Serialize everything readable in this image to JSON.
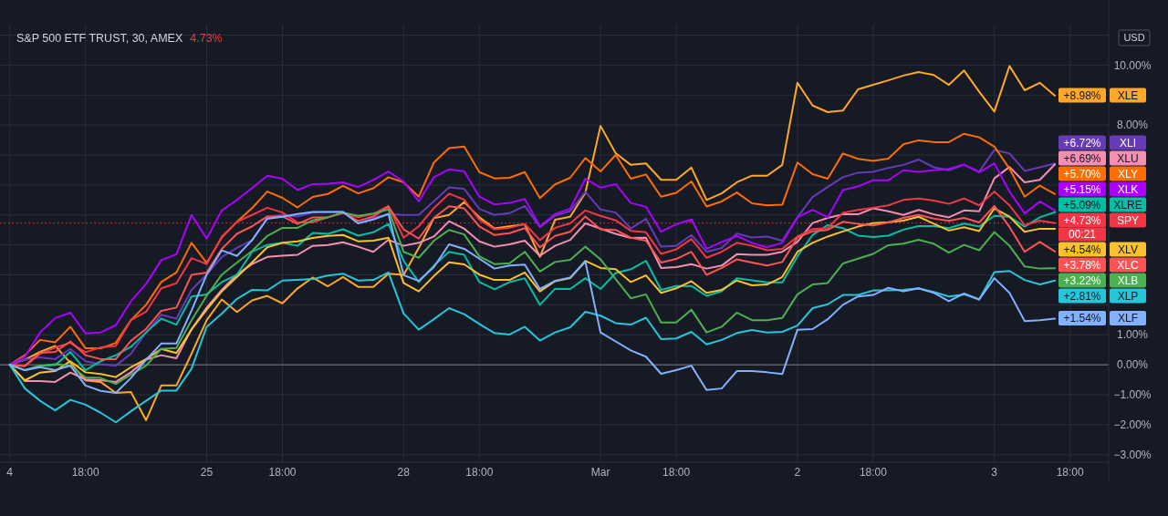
{
  "chart_data": {
    "type": "line",
    "title": "S&P 500 ETF TRUST, 30, AMEX",
    "subtitle": "4.73%",
    "ylabel": "USD",
    "grid": true,
    "legend": "right",
    "categories": [
      "4",
      null,
      null,
      null,
      null,
      "18:00",
      null,
      null,
      null,
      null,
      null,
      null,
      null,
      "25",
      null,
      null,
      null,
      null,
      "18:00",
      null,
      null,
      null,
      null,
      null,
      null,
      null,
      "28",
      null,
      null,
      null,
      null,
      "18:00",
      null,
      null,
      null,
      null,
      null,
      null,
      null,
      "Mar",
      null,
      null,
      null,
      null,
      "18:00",
      null,
      null,
      null,
      null,
      null,
      null,
      null,
      "2",
      null,
      null,
      null,
      null,
      "18:00",
      null,
      null,
      null,
      null,
      null,
      null,
      null,
      "3",
      null,
      null,
      null,
      null,
      "18:00"
    ],
    "ylim": [
      -3.25,
      11.35
    ],
    "yticks": [
      {
        "value": -3,
        "label": "−3.00%"
      },
      {
        "value": -2,
        "label": "−2.00%"
      },
      {
        "value": -1,
        "label": "−1.00%"
      },
      {
        "value": 0,
        "label": "0.00%"
      },
      {
        "value": 1,
        "label": "1.00%"
      },
      {
        "value": 2,
        "label": null
      },
      {
        "value": 3,
        "label": null
      },
      {
        "value": 4,
        "label": null
      },
      {
        "value": 5,
        "label": null
      },
      {
        "value": 6,
        "label": null
      },
      {
        "value": 7,
        "label": null
      },
      {
        "value": 8,
        "label": "8.00%"
      },
      {
        "value": 9,
        "label": null
      },
      {
        "value": 10,
        "label": "10.00%"
      },
      {
        "value": 11,
        "label": null
      }
    ],
    "ref_lines": [
      {
        "axis": "y",
        "value": 0,
        "color": "#787b86"
      },
      {
        "axis": "y",
        "value": 4.73,
        "color": "#f23645",
        "line_style": "dotted"
      }
    ],
    "annotations": [
      "00:21"
    ],
    "series": [
      {
        "name": "XLE",
        "color": "#ffa726",
        "values": [
          0,
          0.17,
          0.43,
          0.63,
          0.07,
          -0.52,
          -0.57,
          -0.94,
          -0.91,
          -1.85,
          -0.69,
          -0.69,
          0.37,
          1.49,
          2.18,
          1.76,
          2.15,
          2.3,
          2.05,
          2.55,
          2.91,
          2.62,
          2.93,
          2.6,
          2.6,
          3.04,
          3.0,
          3.9,
          4.89,
          5.0,
          5.43,
          4.92,
          4.55,
          4.62,
          4.69,
          3.6,
          4.84,
          4.94,
          5.74,
          7.97,
          7.06,
          6.67,
          6.72,
          6.17,
          6.17,
          6.58,
          5.5,
          5.72,
          6.09,
          6.31,
          6.31,
          6.67,
          9.41,
          8.65,
          8.43,
          8.48,
          9.19,
          9.34,
          9.49,
          9.65,
          9.77,
          9.67,
          9.34,
          9.82,
          9.11,
          8.45,
          9.97,
          9.16,
          9.41,
          8.98,
          null
        ],
        "value_labels": [
          null,
          null,
          null,
          null,
          null,
          null,
          null,
          null,
          null,
          null,
          null,
          null,
          null,
          null,
          null,
          null,
          null,
          null,
          null,
          null,
          null,
          null,
          null,
          null,
          null,
          null,
          null,
          null,
          null,
          null,
          null,
          null,
          null,
          null,
          null,
          null,
          null,
          null,
          null,
          null,
          null,
          null,
          null,
          null,
          null,
          null,
          null,
          null,
          null,
          null,
          null,
          null,
          null,
          null,
          null,
          null,
          null,
          null,
          null,
          null,
          null,
          null,
          null,
          null,
          null,
          null,
          null,
          null,
          null,
          "+8.98%",
          null
        ]
      },
      {
        "name": "XLI",
        "color": "#673ab7",
        "values": [
          0,
          0.17,
          0.25,
          0.19,
          0.53,
          0.12,
          0.02,
          -0.03,
          0.37,
          1.08,
          1.67,
          1.54,
          2.5,
          3.01,
          3.6,
          3.9,
          4.16,
          4.92,
          5.0,
          4.95,
          5.08,
          5.1,
          5.11,
          4.72,
          4.9,
          5.03,
          5.0,
          5.0,
          5.46,
          5.92,
          5.87,
          5.2,
          5.0,
          5.06,
          5.3,
          4.59,
          4.98,
          5.13,
          5.77,
          5.18,
          5.08,
          4.55,
          4.87,
          3.94,
          3.97,
          4.33,
          3.77,
          3.9,
          4.38,
          4.25,
          4.28,
          4.14,
          4.92,
          5.6,
          5.93,
          6.26,
          6.41,
          6.44,
          6.57,
          6.67,
          6.85,
          6.59,
          6.49,
          6.68,
          6.44,
          7.17,
          7.05,
          6.47,
          6.59,
          6.72,
          null
        ],
        "value_labels": [
          null,
          null,
          null,
          null,
          null,
          null,
          null,
          null,
          null,
          null,
          null,
          null,
          null,
          null,
          null,
          null,
          null,
          null,
          null,
          null,
          null,
          null,
          null,
          null,
          null,
          null,
          null,
          null,
          null,
          null,
          null,
          null,
          null,
          null,
          null,
          null,
          null,
          null,
          null,
          null,
          null,
          null,
          null,
          null,
          null,
          null,
          null,
          null,
          null,
          null,
          null,
          null,
          null,
          null,
          null,
          null,
          null,
          null,
          null,
          null,
          null,
          null,
          null,
          null,
          null,
          null,
          null,
          null,
          null,
          "+6.72%",
          null
        ]
      },
      {
        "name": "XLU",
        "color": "#f48fb1",
        "values": [
          0,
          -0.54,
          -0.54,
          -0.57,
          -0.26,
          -0.49,
          -0.51,
          -0.57,
          -0.25,
          0.17,
          0.32,
          0.22,
          1.19,
          1.91,
          2.5,
          3.01,
          3.36,
          3.6,
          3.64,
          3.67,
          3.97,
          4.0,
          4.09,
          3.94,
          3.77,
          4.17,
          3.97,
          4.07,
          4.28,
          4.79,
          4.54,
          4.12,
          3.94,
          4.02,
          4.14,
          3.64,
          3.97,
          4.17,
          4.72,
          4.54,
          4.37,
          4.23,
          4.24,
          3.23,
          3.26,
          3.36,
          3.21,
          3.31,
          3.69,
          3.67,
          3.67,
          3.77,
          4.1,
          4.73,
          4.9,
          5.02,
          5.02,
          5.22,
          5.12,
          5.0,
          5.17,
          5.02,
          4.92,
          5.15,
          5.12,
          6.22,
          6.6,
          6.09,
          6.17,
          6.69,
          null
        ],
        "value_labels": [
          null,
          null,
          null,
          null,
          null,
          null,
          null,
          null,
          null,
          null,
          null,
          null,
          null,
          null,
          null,
          null,
          null,
          null,
          null,
          null,
          null,
          null,
          null,
          null,
          null,
          null,
          null,
          null,
          null,
          null,
          null,
          null,
          null,
          null,
          null,
          null,
          null,
          null,
          null,
          null,
          null,
          null,
          null,
          null,
          null,
          null,
          null,
          null,
          null,
          null,
          null,
          null,
          null,
          null,
          null,
          null,
          null,
          null,
          null,
          null,
          null,
          null,
          null,
          null,
          null,
          null,
          null,
          null,
          null,
          "+6.69%",
          null
        ]
      },
      {
        "name": "XLY",
        "color": "#ff6d00",
        "values": [
          0,
          0.32,
          0.83,
          0.75,
          1.27,
          0.55,
          0.55,
          0.73,
          1.49,
          2.0,
          2.76,
          3.08,
          4.07,
          3.4,
          4.25,
          4.77,
          5.23,
          5.78,
          5.57,
          5.25,
          5.6,
          5.7,
          5.97,
          5.72,
          5.89,
          6.26,
          6.09,
          5.61,
          6.75,
          7.23,
          7.28,
          6.43,
          6.22,
          6.24,
          6.43,
          5.56,
          6.02,
          6.24,
          6.9,
          6.45,
          7.0,
          6.21,
          6.35,
          5.61,
          5.74,
          6.12,
          5.28,
          5.45,
          5.75,
          5.39,
          5.32,
          5.34,
          6.75,
          6.36,
          6.21,
          7.05,
          6.87,
          6.8,
          6.88,
          7.36,
          7.49,
          7.43,
          7.43,
          7.71,
          7.59,
          7.28,
          6.54,
          5.61,
          5.98,
          5.7,
          null
        ],
        "value_labels": [
          null,
          null,
          null,
          null,
          null,
          null,
          null,
          null,
          null,
          null,
          null,
          null,
          null,
          null,
          null,
          null,
          null,
          null,
          null,
          null,
          null,
          null,
          null,
          null,
          null,
          null,
          null,
          null,
          null,
          null,
          null,
          null,
          null,
          null,
          null,
          null,
          null,
          null,
          null,
          null,
          null,
          null,
          null,
          null,
          null,
          null,
          null,
          null,
          null,
          null,
          null,
          null,
          null,
          null,
          null,
          null,
          null,
          null,
          null,
          null,
          null,
          null,
          null,
          null,
          null,
          null,
          null,
          null,
          null,
          "+5.70%",
          null
        ]
      },
      {
        "name": "XLK",
        "color": "#aa00ff",
        "values": [
          0,
          0.27,
          1.08,
          1.56,
          1.74,
          1.05,
          1.08,
          1.32,
          2.12,
          2.7,
          3.49,
          3.69,
          5.0,
          4.21,
          5.15,
          5.5,
          5.9,
          6.31,
          6.21,
          5.83,
          6.03,
          6.04,
          6.09,
          5.93,
          6.17,
          6.45,
          6.11,
          5.45,
          6.26,
          6.52,
          6.45,
          5.61,
          5.35,
          5.4,
          5.53,
          4.62,
          5.03,
          5.21,
          6.21,
          5.91,
          6.03,
          5.4,
          5.27,
          4.44,
          4.69,
          4.85,
          3.87,
          4.1,
          4.3,
          4.07,
          3.92,
          4.07,
          4.92,
          5.17,
          4.92,
          5.83,
          5.95,
          6.16,
          6.16,
          6.49,
          6.44,
          6.49,
          6.54,
          6.68,
          6.42,
          6.72,
          5.78,
          5.05,
          5.45,
          5.15,
          null
        ],
        "value_labels": [
          null,
          null,
          null,
          null,
          null,
          null,
          null,
          null,
          null,
          null,
          null,
          null,
          null,
          null,
          null,
          null,
          null,
          null,
          null,
          null,
          null,
          null,
          null,
          null,
          null,
          null,
          null,
          null,
          null,
          null,
          null,
          null,
          null,
          null,
          null,
          null,
          null,
          null,
          null,
          null,
          null,
          null,
          null,
          null,
          null,
          null,
          null,
          null,
          null,
          null,
          null,
          null,
          null,
          null,
          null,
          null,
          null,
          null,
          null,
          null,
          null,
          null,
          null,
          null,
          null,
          null,
          null,
          null,
          null,
          "+5.15%",
          null
        ]
      },
      {
        "name": "XLRE",
        "color": "#00bfa5",
        "values": [
          0,
          -0.18,
          -0.03,
          -0.01,
          0.43,
          -0.18,
          0.12,
          0.32,
          0.6,
          1.08,
          1.54,
          1.34,
          2.28,
          2.35,
          2.76,
          3.01,
          3.77,
          4.0,
          4.07,
          3.97,
          4.4,
          4.37,
          4.52,
          4.31,
          4.42,
          4.7,
          3.47,
          2.76,
          3.31,
          3.77,
          3.67,
          2.76,
          2.52,
          2.76,
          2.89,
          2.0,
          2.54,
          2.53,
          2.89,
          2.53,
          3.06,
          3.19,
          3.47,
          2.5,
          2.63,
          2.63,
          2.3,
          2.45,
          2.89,
          2.82,
          2.75,
          2.75,
          3.62,
          4.33,
          4.66,
          4.56,
          4.31,
          4.26,
          4.31,
          4.51,
          4.63,
          4.63,
          4.56,
          4.71,
          4.61,
          4.97,
          4.94,
          4.61,
          4.92,
          5.09,
          null
        ],
        "value_labels": [
          null,
          null,
          null,
          null,
          null,
          null,
          null,
          null,
          null,
          null,
          null,
          null,
          null,
          null,
          null,
          null,
          null,
          null,
          null,
          null,
          null,
          null,
          null,
          null,
          null,
          null,
          null,
          null,
          null,
          null,
          null,
          null,
          null,
          null,
          null,
          null,
          null,
          null,
          null,
          null,
          null,
          null,
          null,
          null,
          null,
          null,
          null,
          null,
          null,
          null,
          null,
          null,
          null,
          null,
          null,
          null,
          null,
          null,
          null,
          null,
          null,
          null,
          null,
          null,
          null,
          null,
          null,
          null,
          null,
          "+5.09%",
          null
        ]
      },
      {
        "name": "SPY",
        "color": "#f23645",
        "values": [
          0,
          -0.05,
          0.37,
          0.58,
          0.73,
          0.42,
          0.58,
          0.63,
          1.49,
          1.77,
          2.55,
          2.72,
          3.56,
          3.36,
          4.28,
          4.77,
          5.0,
          5.24,
          5.08,
          4.75,
          4.75,
          4.92,
          5.06,
          4.92,
          5.03,
          5.3,
          4.24,
          4.62,
          5.23,
          5.71,
          5.51,
          4.84,
          4.52,
          4.57,
          4.7,
          4.16,
          4.57,
          4.72,
          5.15,
          4.97,
          4.82,
          4.47,
          4.42,
          3.7,
          3.85,
          4.2,
          3.57,
          3.77,
          4.07,
          3.97,
          3.82,
          3.87,
          4.28,
          4.53,
          4.56,
          5.07,
          5.17,
          5.24,
          5.32,
          5.5,
          5.55,
          5.48,
          5.37,
          5.55,
          5.32,
          5.78,
          5.32,
          4.66,
          4.81,
          4.73,
          null
        ],
        "value_labels": [
          null,
          null,
          null,
          null,
          null,
          null,
          null,
          null,
          null,
          null,
          null,
          null,
          null,
          null,
          null,
          null,
          null,
          null,
          null,
          null,
          null,
          null,
          null,
          null,
          null,
          null,
          null,
          null,
          null,
          null,
          null,
          null,
          null,
          null,
          null,
          null,
          null,
          null,
          null,
          null,
          null,
          null,
          null,
          null,
          null,
          null,
          null,
          null,
          null,
          null,
          null,
          null,
          null,
          null,
          null,
          null,
          null,
          null,
          null,
          null,
          null,
          null,
          null,
          null,
          null,
          null,
          null,
          null,
          null,
          "+4.73%",
          null
        ]
      },
      {
        "name": "XLV",
        "color": "#fbc02d",
        "values": [
          0,
          -0.52,
          -0.26,
          -0.21,
          0.12,
          -0.25,
          -0.31,
          -0.41,
          -0.08,
          0.19,
          0.53,
          0.39,
          1.18,
          1.84,
          2.45,
          2.93,
          3.42,
          3.92,
          4.07,
          4.12,
          4.23,
          4.3,
          4.33,
          4.12,
          4.14,
          4.24,
          2.73,
          2.45,
          2.96,
          3.42,
          3.35,
          3.01,
          2.83,
          2.83,
          3.08,
          2.45,
          2.79,
          2.89,
          3.47,
          3.23,
          3.19,
          2.76,
          2.98,
          2.4,
          2.55,
          2.79,
          2.4,
          2.5,
          2.81,
          2.65,
          2.68,
          2.93,
          3.77,
          4.07,
          4.28,
          4.45,
          4.61,
          4.73,
          4.76,
          4.81,
          4.94,
          4.71,
          4.48,
          4.59,
          4.46,
          5.22,
          4.94,
          4.44,
          4.54,
          4.54,
          null
        ],
        "value_labels": [
          null,
          null,
          null,
          null,
          null,
          null,
          null,
          null,
          null,
          null,
          null,
          null,
          null,
          null,
          null,
          null,
          null,
          null,
          null,
          null,
          null,
          null,
          null,
          null,
          null,
          null,
          null,
          null,
          null,
          null,
          null,
          null,
          null,
          null,
          null,
          null,
          null,
          null,
          null,
          null,
          null,
          null,
          null,
          null,
          null,
          null,
          null,
          null,
          null,
          null,
          null,
          null,
          null,
          null,
          null,
          null,
          null,
          null,
          null,
          null,
          null,
          null,
          null,
          null,
          null,
          null,
          null,
          null,
          null,
          "+4.54%",
          null
        ]
      },
      {
        "name": "XLC",
        "color": "#ff5252",
        "values": [
          0,
          -0.03,
          0.4,
          0.43,
          0.78,
          0.32,
          0.19,
          0.19,
          0.8,
          1.2,
          1.8,
          1.91,
          3.0,
          3.08,
          3.87,
          4.37,
          4.62,
          4.95,
          4.95,
          4.7,
          4.92,
          4.92,
          5.08,
          4.8,
          4.95,
          5.27,
          4.52,
          4.21,
          4.9,
          5.29,
          5.22,
          4.62,
          4.33,
          4.39,
          4.56,
          3.92,
          4.3,
          4.44,
          4.95,
          4.52,
          4.5,
          4.24,
          4.14,
          3.41,
          3.53,
          3.77,
          3.0,
          3.23,
          3.52,
          3.41,
          3.31,
          3.43,
          4.25,
          4.45,
          4.5,
          4.77,
          4.7,
          4.65,
          4.75,
          4.9,
          5.0,
          4.88,
          4.8,
          4.9,
          4.75,
          5.3,
          4.6,
          3.77,
          4.1,
          3.78,
          null
        ],
        "value_labels": [
          null,
          null,
          null,
          null,
          null,
          null,
          null,
          null,
          null,
          null,
          null,
          null,
          null,
          null,
          null,
          null,
          null,
          null,
          null,
          null,
          null,
          null,
          null,
          null,
          null,
          null,
          null,
          null,
          null,
          null,
          null,
          null,
          null,
          null,
          null,
          null,
          null,
          null,
          null,
          null,
          null,
          null,
          null,
          null,
          null,
          null,
          null,
          null,
          null,
          null,
          null,
          null,
          null,
          null,
          null,
          null,
          null,
          null,
          null,
          null,
          null,
          null,
          null,
          null,
          null,
          null,
          null,
          null,
          null,
          "+3.78%",
          null
        ]
      },
      {
        "name": "XLB",
        "color": "#4caf50",
        "values": [
          0,
          -0.18,
          -0.03,
          0.02,
          -0.03,
          -0.42,
          -0.44,
          -0.64,
          -0.33,
          -0.03,
          0.53,
          0.56,
          1.49,
          2.3,
          3.01,
          3.41,
          3.8,
          4.3,
          4.57,
          4.57,
          4.82,
          4.92,
          5.08,
          4.97,
          5.05,
          5.18,
          3.77,
          3.57,
          4.14,
          4.5,
          4.35,
          3.62,
          3.36,
          3.39,
          3.77,
          3.11,
          3.43,
          3.5,
          3.94,
          3.52,
          2.86,
          2.22,
          2.35,
          1.41,
          1.41,
          1.84,
          1.08,
          1.27,
          1.74,
          1.49,
          1.49,
          1.56,
          2.35,
          2.68,
          2.73,
          3.38,
          3.54,
          3.7,
          3.99,
          4.04,
          4.17,
          4.04,
          3.74,
          4.0,
          3.82,
          4.43,
          3.97,
          3.28,
          3.21,
          3.22,
          null
        ],
        "value_labels": [
          null,
          null,
          null,
          null,
          null,
          null,
          null,
          null,
          null,
          null,
          null,
          null,
          null,
          null,
          null,
          null,
          null,
          null,
          null,
          null,
          null,
          null,
          null,
          null,
          null,
          null,
          null,
          null,
          null,
          null,
          null,
          null,
          null,
          null,
          null,
          null,
          null,
          null,
          null,
          null,
          null,
          null,
          null,
          null,
          null,
          null,
          null,
          null,
          null,
          null,
          null,
          null,
          null,
          null,
          null,
          null,
          null,
          null,
          null,
          null,
          null,
          null,
          null,
          null,
          null,
          null,
          null,
          null,
          null,
          "+3.22%",
          null
        ]
      },
      {
        "name": "XLP",
        "color": "#26c6da",
        "values": [
          0,
          -0.79,
          -1.2,
          -1.52,
          -1.17,
          -1.33,
          -1.6,
          -1.92,
          -1.55,
          -1.2,
          -0.86,
          -0.86,
          -0.13,
          1.27,
          1.71,
          2.2,
          2.5,
          2.48,
          2.81,
          2.83,
          2.86,
          2.98,
          3.04,
          2.81,
          2.83,
          3.08,
          1.71,
          1.17,
          1.52,
          1.89,
          1.69,
          1.36,
          1.06,
          1.01,
          1.27,
          0.81,
          1.08,
          1.25,
          1.77,
          1.64,
          1.39,
          1.34,
          1.57,
          0.86,
          0.88,
          1.1,
          0.68,
          0.83,
          1.06,
          1.16,
          1.08,
          1.1,
          1.31,
          1.89,
          2.02,
          2.33,
          2.33,
          2.48,
          2.48,
          2.5,
          2.55,
          2.43,
          2.28,
          2.35,
          2.18,
          3.09,
          3.13,
          2.83,
          2.68,
          2.81,
          null
        ],
        "value_labels": [
          null,
          null,
          null,
          null,
          null,
          null,
          null,
          null,
          null,
          null,
          null,
          null,
          null,
          null,
          null,
          null,
          null,
          null,
          null,
          null,
          null,
          null,
          null,
          null,
          null,
          null,
          null,
          null,
          null,
          null,
          null,
          null,
          null,
          null,
          null,
          null,
          null,
          null,
          null,
          null,
          null,
          null,
          null,
          null,
          null,
          null,
          null,
          null,
          null,
          null,
          null,
          null,
          null,
          null,
          null,
          null,
          null,
          null,
          null,
          null,
          null,
          null,
          null,
          null,
          null,
          null,
          null,
          null,
          null,
          "+2.81%",
          null
        ]
      },
      {
        "name": "XLF",
        "color": "#82b1ff",
        "values": [
          0,
          -0.18,
          -0.08,
          -0.18,
          -0.03,
          -0.69,
          -0.87,
          -0.94,
          -0.44,
          0.17,
          0.71,
          0.71,
          1.81,
          3.01,
          3.82,
          3.63,
          4.16,
          4.87,
          4.94,
          5.03,
          5.1,
          5.1,
          5.1,
          4.72,
          4.85,
          5.03,
          2.99,
          2.8,
          3.26,
          4.02,
          3.87,
          3.54,
          3.21,
          3.31,
          3.34,
          2.53,
          2.8,
          2.91,
          3.44,
          1.08,
          0.78,
          0.48,
          0.27,
          -0.3,
          -0.18,
          -0.03,
          -0.84,
          -0.79,
          -0.21,
          -0.21,
          -0.25,
          -0.31,
          1.17,
          1.19,
          1.52,
          2.0,
          2.28,
          2.33,
          2.57,
          2.45,
          2.55,
          2.4,
          2.12,
          2.38,
          2.18,
          2.89,
          2.4,
          1.46,
          1.49,
          1.54,
          null
        ],
        "value_labels": [
          null,
          null,
          null,
          null,
          null,
          null,
          null,
          null,
          null,
          null,
          null,
          null,
          null,
          null,
          null,
          null,
          null,
          null,
          null,
          null,
          null,
          null,
          null,
          null,
          null,
          null,
          null,
          null,
          null,
          null,
          null,
          null,
          null,
          null,
          null,
          null,
          null,
          null,
          null,
          null,
          null,
          null,
          null,
          null,
          null,
          null,
          null,
          null,
          null,
          null,
          null,
          null,
          null,
          null,
          null,
          null,
          null,
          null,
          null,
          null,
          null,
          null,
          null,
          null,
          null,
          null,
          null,
          null,
          null,
          "+1.54%",
          null
        ]
      }
    ]
  }
}
